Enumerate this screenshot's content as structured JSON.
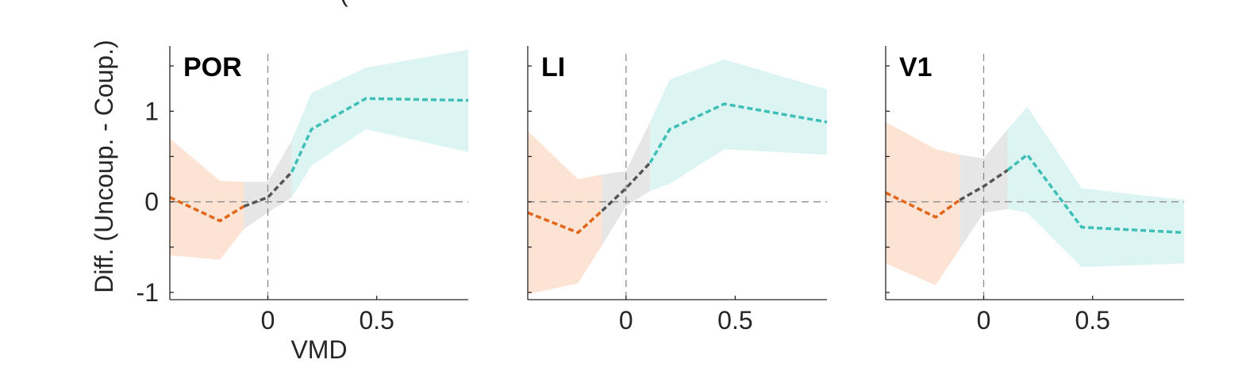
{
  "figure": {
    "panel_letter_partial": "(",
    "ylabel": "Diff. (Uncoup. - Coup.)",
    "xlabel": "VMD"
  },
  "colors": {
    "neg": "#e2661a",
    "neg_band": "#fde3d3",
    "mid": "#555555",
    "mid_band": "#e6e6e6",
    "pos": "#3ebfb6",
    "pos_band": "#dcf5f3",
    "axis": "#262626",
    "ref_line": "#8c8c8c"
  },
  "chart_data": [
    {
      "type": "line",
      "title": "POR",
      "xlim": [
        -0.45,
        0.92
      ],
      "ylim": [
        -1.08,
        1.72
      ],
      "xticks": [
        0,
        0.5
      ],
      "xtick_labels": [
        "0",
        "0.5"
      ],
      "yticks": [
        -1,
        0,
        1
      ],
      "ytick_labels": [
        "-1",
        "0",
        "1"
      ],
      "minor_yticks": [
        -0.5,
        0.5,
        1.5
      ],
      "series": [
        {
          "segment": "neg",
          "x": [
            -0.45,
            -0.22,
            -0.11
          ],
          "y": [
            0.05,
            -0.21,
            -0.05
          ]
        },
        {
          "segment": "mid",
          "x": [
            -0.11,
            0.0,
            0.11
          ],
          "y": [
            -0.05,
            0.05,
            0.33
          ]
        },
        {
          "segment": "pos",
          "x": [
            0.11,
            0.2,
            0.45,
            0.92
          ],
          "y": [
            0.33,
            0.8,
            1.14,
            1.12
          ]
        }
      ],
      "bands": [
        {
          "segment": "neg",
          "x": [
            -0.45,
            -0.22,
            -0.11
          ],
          "upper": [
            0.7,
            0.23,
            0.22
          ],
          "lower": [
            -0.59,
            -0.64,
            -0.3
          ]
        },
        {
          "segment": "mid",
          "x": [
            -0.11,
            0.0,
            0.11
          ],
          "upper": [
            0.22,
            0.22,
            0.68
          ],
          "lower": [
            -0.3,
            -0.12,
            0.05
          ]
        },
        {
          "segment": "pos",
          "x": [
            0.11,
            0.2,
            0.45,
            0.92
          ],
          "upper": [
            0.68,
            1.2,
            1.48,
            1.68
          ],
          "lower": [
            0.05,
            0.4,
            0.8,
            0.55
          ]
        }
      ]
    },
    {
      "type": "line",
      "title": "LI",
      "xlim": [
        -0.45,
        0.92
      ],
      "ylim": [
        -1.08,
        1.72
      ],
      "xticks": [
        0,
        0.5
      ],
      "xtick_labels": [
        "0",
        "0.5"
      ],
      "yticks": [
        -1,
        0,
        1
      ],
      "ytick_labels": [],
      "minor_yticks": [
        -0.5,
        0.5,
        1.5
      ],
      "series": [
        {
          "segment": "neg",
          "x": [
            -0.45,
            -0.22,
            -0.11
          ],
          "y": [
            -0.12,
            -0.34,
            -0.1
          ]
        },
        {
          "segment": "mid",
          "x": [
            -0.11,
            0.0,
            0.11
          ],
          "y": [
            -0.1,
            0.15,
            0.43
          ]
        },
        {
          "segment": "pos",
          "x": [
            0.11,
            0.2,
            0.45,
            0.92
          ],
          "y": [
            0.43,
            0.8,
            1.08,
            0.88
          ]
        }
      ],
      "bands": [
        {
          "segment": "neg",
          "x": [
            -0.45,
            -0.22,
            -0.11
          ],
          "upper": [
            0.78,
            0.25,
            0.3
          ],
          "lower": [
            -1.02,
            -0.9,
            -0.48
          ]
        },
        {
          "segment": "mid",
          "x": [
            -0.11,
            0.0,
            0.11
          ],
          "upper": [
            0.3,
            0.34,
            0.88
          ],
          "lower": [
            -0.48,
            -0.05,
            0.12
          ]
        },
        {
          "segment": "pos",
          "x": [
            0.11,
            0.2,
            0.45,
            0.92
          ],
          "upper": [
            0.88,
            1.35,
            1.57,
            1.24
          ],
          "lower": [
            0.12,
            0.2,
            0.58,
            0.52
          ]
        }
      ]
    },
    {
      "type": "line",
      "title": "V1",
      "xlim": [
        -0.45,
        0.92
      ],
      "ylim": [
        -1.08,
        1.72
      ],
      "xticks": [
        0,
        0.5
      ],
      "xtick_labels": [
        "0",
        "0.5"
      ],
      "yticks": [
        -1,
        0,
        1
      ],
      "ytick_labels": [],
      "minor_yticks": [
        -0.5,
        0.5,
        1.5
      ],
      "series": [
        {
          "segment": "neg",
          "x": [
            -0.45,
            -0.22,
            -0.11
          ],
          "y": [
            0.1,
            -0.17,
            0.02
          ]
        },
        {
          "segment": "mid",
          "x": [
            -0.11,
            0.0,
            0.11
          ],
          "y": [
            0.02,
            0.17,
            0.35
          ]
        },
        {
          "segment": "pos",
          "x": [
            0.11,
            0.2,
            0.45,
            0.92
          ],
          "y": [
            0.35,
            0.52,
            -0.28,
            -0.34
          ]
        }
      ],
      "bands": [
        {
          "segment": "neg",
          "x": [
            -0.45,
            -0.22,
            -0.11
          ],
          "upper": [
            0.88,
            0.58,
            0.52
          ],
          "lower": [
            -0.68,
            -0.92,
            -0.52
          ]
        },
        {
          "segment": "mid",
          "x": [
            -0.11,
            0.0,
            0.11
          ],
          "upper": [
            0.52,
            0.48,
            0.8
          ],
          "lower": [
            -0.52,
            -0.12,
            -0.08
          ]
        },
        {
          "segment": "pos",
          "x": [
            0.11,
            0.2,
            0.45,
            0.92
          ],
          "upper": [
            0.8,
            1.05,
            0.15,
            0.02
          ],
          "lower": [
            -0.08,
            -0.12,
            -0.72,
            -0.68
          ]
        }
      ]
    }
  ]
}
